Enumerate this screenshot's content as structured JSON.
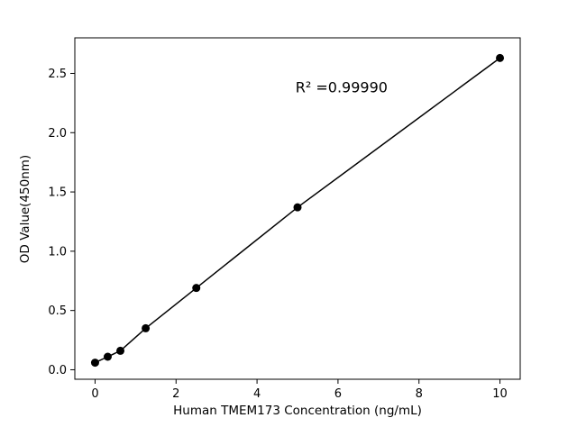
{
  "figure": {
    "background": "#ffffff"
  },
  "chart_data": {
    "type": "scatter",
    "title": "",
    "xlabel": "Human TMEM173 Concentration (ng/mL)",
    "ylabel": "OD Value(450nm)",
    "x": [
      0,
      0.3125,
      0.625,
      1.25,
      2.5,
      5,
      10
    ],
    "y": [
      0.06,
      0.11,
      0.16,
      0.35,
      0.69,
      1.37,
      2.63
    ],
    "xlim": [
      -0.5,
      10.5
    ],
    "ylim": [
      -0.08,
      2.8
    ],
    "xticks": [
      0,
      2,
      4,
      6,
      8,
      10
    ],
    "xticklabels": [
      "0",
      "2",
      "4",
      "6",
      "8",
      "10"
    ],
    "yticks": [
      0.0,
      0.5,
      1.0,
      1.5,
      2.0,
      2.5
    ],
    "yticklabels": [
      "0.0",
      "0.5",
      "1.0",
      "1.5",
      "2.0",
      "2.5"
    ],
    "grid": false,
    "legend": null,
    "line_color": "#000000",
    "marker_color": "#000000",
    "annotation": {
      "text": "R² =0.99990",
      "x": 4.95,
      "y": 2.34
    }
  }
}
